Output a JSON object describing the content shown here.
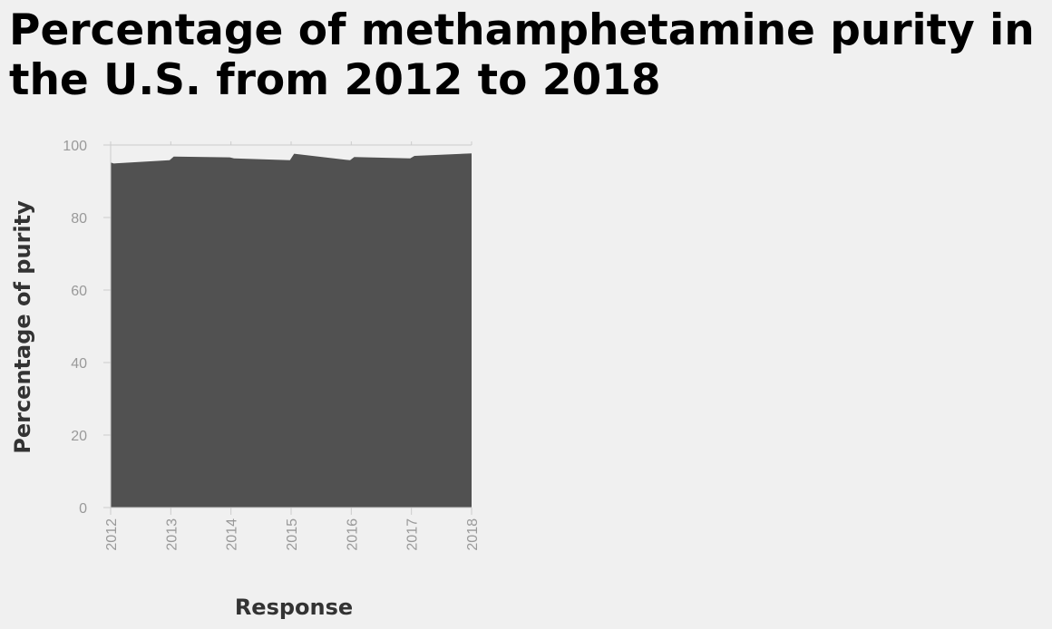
{
  "chart_data": {
    "type": "area",
    "title": "Percentage of methamphetamine purity in the U.S. from 2012 to 2018",
    "xlabel": "Response",
    "ylabel": "Percentage of purity",
    "x": [
      2012,
      2013,
      2014,
      2015,
      2016,
      2017,
      2018
    ],
    "x_tick_labels": [
      "2012",
      "2013",
      "2014",
      "2015",
      "2016",
      "2017",
      "2018"
    ],
    "series": [
      {
        "values": [
          95.2,
          96.8,
          96.6,
          97.6,
          96.7,
          97.0,
          97.7
        ]
      }
    ],
    "profile": [
      [
        2012.0,
        95.2
      ],
      [
        2012.05,
        94.9
      ],
      [
        2012.98,
        95.8
      ],
      [
        2013.05,
        96.8
      ],
      [
        2013.98,
        96.6
      ],
      [
        2014.05,
        96.3
      ],
      [
        2014.98,
        95.8
      ],
      [
        2015.05,
        97.6
      ],
      [
        2015.98,
        95.8
      ],
      [
        2016.05,
        96.7
      ],
      [
        2016.98,
        96.3
      ],
      [
        2017.05,
        97.0
      ],
      [
        2018.0,
        97.7
      ]
    ],
    "ylim": [
      0,
      100
    ],
    "y_ticks": [
      0,
      20,
      40,
      60,
      80,
      100
    ],
    "grid": false,
    "fill_color": "#515151"
  }
}
